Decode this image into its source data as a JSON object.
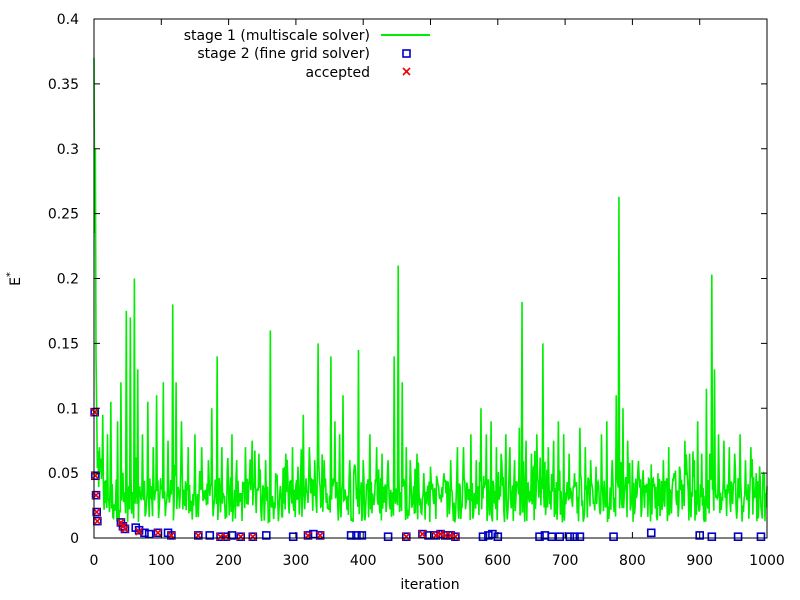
{
  "chart_data": {
    "type": "line",
    "title": "",
    "xlabel": "iteration",
    "ylabel": "E",
    "ylabel_superscript": "*",
    "xlim": [
      0,
      1000
    ],
    "ylim": [
      0,
      0.4
    ],
    "xticks": [
      0,
      100,
      200,
      300,
      400,
      500,
      600,
      700,
      800,
      900,
      1000
    ],
    "yticks": [
      0,
      0.05,
      0.1,
      0.15,
      0.2,
      0.25,
      0.3,
      0.35,
      0.4
    ],
    "xtick_labels": [
      "0",
      "100",
      "200",
      "300",
      "400",
      "500",
      "600",
      "700",
      "800",
      "900",
      "1000"
    ],
    "ytick_labels": [
      "0",
      "0.05",
      "0.1",
      "0.15",
      "0.2",
      "0.25",
      "0.3",
      "0.35",
      "0.4"
    ],
    "grid": false,
    "legend_position": "top-center",
    "colors": {
      "stage1": "#00ee00",
      "stage2": "#0000cc",
      "accepted": "#ee0000",
      "axes": "#000000"
    },
    "series": [
      {
        "name": "stage 1 (multiscale solver)",
        "kind": "line",
        "peaks": [
          [
            0,
            0.37
          ],
          [
            1,
            0.235
          ],
          [
            2,
            0.3
          ],
          [
            3,
            0.14
          ],
          [
            4,
            0.1
          ],
          [
            8,
            0.07
          ],
          [
            13,
            0.095
          ],
          [
            20,
            0.08
          ],
          [
            25,
            0.105
          ],
          [
            35,
            0.09
          ],
          [
            40,
            0.12
          ],
          [
            48,
            0.175
          ],
          [
            54,
            0.17
          ],
          [
            60,
            0.2
          ],
          [
            65,
            0.13
          ],
          [
            72,
            0.08
          ],
          [
            80,
            0.105
          ],
          [
            88,
            0.07
          ],
          [
            93,
            0.11
          ],
          [
            103,
            0.12
          ],
          [
            110,
            0.075
          ],
          [
            117,
            0.18
          ],
          [
            122,
            0.12
          ],
          [
            130,
            0.09
          ],
          [
            140,
            0.07
          ],
          [
            150,
            0.08
          ],
          [
            160,
            0.07
          ],
          [
            170,
            0.06
          ],
          [
            175,
            0.1
          ],
          [
            183,
            0.14
          ],
          [
            190,
            0.07
          ],
          [
            205,
            0.08
          ],
          [
            212,
            0.06
          ],
          [
            225,
            0.07
          ],
          [
            235,
            0.075
          ],
          [
            245,
            0.065
          ],
          [
            255,
            0.06
          ],
          [
            262,
            0.16
          ],
          [
            270,
            0.05
          ],
          [
            285,
            0.065
          ],
          [
            295,
            0.07
          ],
          [
            303,
            0.055
          ],
          [
            311,
            0.095
          ],
          [
            320,
            0.07
          ],
          [
            328,
            0.06
          ],
          [
            333,
            0.15
          ],
          [
            342,
            0.06
          ],
          [
            352,
            0.14
          ],
          [
            358,
            0.09
          ],
          [
            365,
            0.08
          ],
          [
            370,
            0.11
          ],
          [
            380,
            0.06
          ],
          [
            393,
            0.145
          ],
          [
            400,
            0.06
          ],
          [
            410,
            0.08
          ],
          [
            420,
            0.07
          ],
          [
            428,
            0.065
          ],
          [
            437,
            0.06
          ],
          [
            446,
            0.14
          ],
          [
            452,
            0.21
          ],
          [
            458,
            0.12
          ],
          [
            464,
            0.07
          ],
          [
            470,
            0.06
          ],
          [
            480,
            0.065
          ],
          [
            490,
            0.05
          ],
          [
            500,
            0.055
          ],
          [
            510,
            0.045
          ],
          [
            520,
            0.05
          ],
          [
            530,
            0.06
          ],
          [
            540,
            0.07
          ],
          [
            549,
            0.07
          ],
          [
            560,
            0.08
          ],
          [
            568,
            0.06
          ],
          [
            575,
            0.1
          ],
          [
            583,
            0.08
          ],
          [
            590,
            0.09
          ],
          [
            598,
            0.07
          ],
          [
            605,
            0.065
          ],
          [
            612,
            0.08
          ],
          [
            618,
            0.07
          ],
          [
            625,
            0.06
          ],
          [
            632,
            0.085
          ],
          [
            636,
            0.182
          ],
          [
            642,
            0.075
          ],
          [
            650,
            0.065
          ],
          [
            658,
            0.08
          ],
          [
            667,
            0.15
          ],
          [
            675,
            0.07
          ],
          [
            683,
            0.075
          ],
          [
            690,
            0.09
          ],
          [
            698,
            0.08
          ],
          [
            706,
            0.065
          ],
          [
            714,
            0.05
          ],
          [
            722,
            0.085
          ],
          [
            730,
            0.07
          ],
          [
            738,
            0.06
          ],
          [
            746,
            0.055
          ],
          [
            754,
            0.08
          ],
          [
            762,
            0.09
          ],
          [
            770,
            0.06
          ],
          [
            776,
            0.11
          ],
          [
            780,
            0.263
          ],
          [
            786,
            0.1
          ],
          [
            793,
            0.075
          ],
          [
            800,
            0.06
          ],
          [
            808,
            0.05
          ],
          [
            815,
            0.045
          ],
          [
            822,
            0.04
          ],
          [
            830,
            0.045
          ],
          [
            838,
            0.05
          ],
          [
            846,
            0.06
          ],
          [
            854,
            0.07
          ],
          [
            862,
            0.05
          ],
          [
            870,
            0.055
          ],
          [
            878,
            0.075
          ],
          [
            885,
            0.065
          ],
          [
            892,
            0.06
          ],
          [
            897,
            0.09
          ],
          [
            903,
            0.065
          ],
          [
            910,
            0.115
          ],
          [
            915,
            0.065
          ],
          [
            918,
            0.203
          ],
          [
            922,
            0.13
          ],
          [
            928,
            0.08
          ],
          [
            936,
            0.075
          ],
          [
            944,
            0.07
          ],
          [
            952,
            0.065
          ],
          [
            960,
            0.08
          ],
          [
            968,
            0.06
          ],
          [
            976,
            0.07
          ],
          [
            984,
            0.05
          ],
          [
            990,
            0.045
          ],
          [
            995,
            0.05
          ],
          [
            1000,
            0.04
          ]
        ]
      },
      {
        "name": "stage 2 (fine grid solver)",
        "kind": "scatter",
        "marker": "open-square",
        "points": [
          [
            1,
            0.097
          ],
          [
            2,
            0.048
          ],
          [
            3,
            0.033
          ],
          [
            4,
            0.02
          ],
          [
            5,
            0.013
          ],
          [
            40,
            0.012
          ],
          [
            43,
            0.009
          ],
          [
            46,
            0.007
          ],
          [
            62,
            0.008
          ],
          [
            67,
            0.006
          ],
          [
            75,
            0.004
          ],
          [
            82,
            0.003
          ],
          [
            95,
            0.004
          ],
          [
            110,
            0.004
          ],
          [
            115,
            0.002
          ],
          [
            155,
            0.002
          ],
          [
            172,
            0.002
          ],
          [
            188,
            0.001
          ],
          [
            196,
            0.001
          ],
          [
            205,
            0.002
          ],
          [
            218,
            0.001
          ],
          [
            236,
            0.001
          ],
          [
            256,
            0.002
          ],
          [
            296,
            0.001
          ],
          [
            318,
            0.002
          ],
          [
            326,
            0.003
          ],
          [
            336,
            0.002
          ],
          [
            382,
            0.002
          ],
          [
            390,
            0.002
          ],
          [
            398,
            0.002
          ],
          [
            437,
            0.001
          ],
          [
            464,
            0.001
          ],
          [
            488,
            0.003
          ],
          [
            497,
            0.002
          ],
          [
            508,
            0.002
          ],
          [
            515,
            0.003
          ],
          [
            522,
            0.002
          ],
          [
            530,
            0.002
          ],
          [
            537,
            0.001
          ],
          [
            578,
            0.001
          ],
          [
            586,
            0.002
          ],
          [
            592,
            0.003
          ],
          [
            600,
            0.001
          ],
          [
            662,
            0.001
          ],
          [
            670,
            0.002
          ],
          [
            680,
            0.001
          ],
          [
            692,
            0.001
          ],
          [
            707,
            0.001
          ],
          [
            714,
            0.001
          ],
          [
            722,
            0.001
          ],
          [
            772,
            0.001
          ],
          [
            828,
            0.004
          ],
          [
            900,
            0.002
          ],
          [
            918,
            0.001
          ],
          [
            957,
            0.001
          ],
          [
            991,
            0.001
          ]
        ]
      },
      {
        "name": "accepted",
        "kind": "scatter",
        "marker": "cross",
        "points": [
          [
            1,
            0.097
          ],
          [
            2,
            0.048
          ],
          [
            3,
            0.033
          ],
          [
            4,
            0.02
          ],
          [
            5,
            0.013
          ],
          [
            40,
            0.012
          ],
          [
            43,
            0.009
          ],
          [
            46,
            0.007
          ],
          [
            67,
            0.005
          ],
          [
            95,
            0.004
          ],
          [
            115,
            0.002
          ],
          [
            155,
            0.002
          ],
          [
            188,
            0.001
          ],
          [
            196,
            0.001
          ],
          [
            218,
            0.001
          ],
          [
            236,
            0.001
          ],
          [
            318,
            0.002
          ],
          [
            336,
            0.002
          ],
          [
            464,
            0.001
          ],
          [
            488,
            0.003
          ],
          [
            508,
            0.002
          ],
          [
            515,
            0.003
          ],
          [
            522,
            0.002
          ],
          [
            530,
            0.002
          ],
          [
            537,
            0.001
          ]
        ]
      }
    ]
  }
}
